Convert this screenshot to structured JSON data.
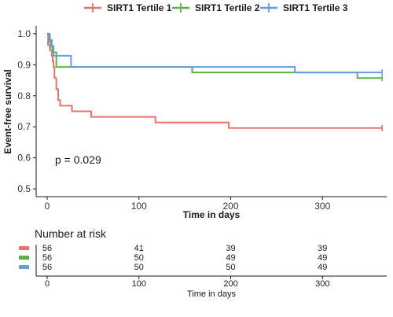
{
  "chart_data": {
    "type": "line",
    "subtype": "kaplan-meier step",
    "legend_position": "top",
    "xlabel": "Time in days",
    "ylabel": "Event-free survival",
    "xlim": [
      -12,
      370
    ],
    "ylim": [
      0.475,
      1.025
    ],
    "x_ticks": [
      0,
      100,
      200,
      300
    ],
    "y_ticks": [
      0.5,
      0.6,
      0.7,
      0.8,
      0.9,
      1.0
    ],
    "y_tick_labels": [
      "0.5",
      "0.6",
      "0.7",
      "0.8",
      "0.9",
      "1.0"
    ],
    "annotation": "p = 0.029",
    "grid": false,
    "series": [
      {
        "name": "SIRT1 Tertile 1",
        "color": "#E8736C",
        "x": [
          0,
          1,
          3,
          5,
          6,
          7,
          8,
          10,
          12,
          14,
          18,
          27,
          48,
          118,
          198,
          365
        ],
        "y": [
          1.0,
          0.964,
          0.946,
          0.929,
          0.911,
          0.893,
          0.857,
          0.821,
          0.786,
          0.768,
          0.768,
          0.75,
          0.732,
          0.714,
          0.696,
          0.696
        ],
        "censor_x": [
          365
        ],
        "censor_y": [
          0.696
        ]
      },
      {
        "name": "SIRT1 Tertile 2",
        "color": "#59B348",
        "x": [
          0,
          2,
          4,
          6,
          10,
          158,
          338,
          365
        ],
        "y": [
          1.0,
          0.98,
          0.96,
          0.94,
          0.893,
          0.875,
          0.857,
          0.857
        ],
        "censor_x": [
          2,
          4,
          365
        ],
        "censor_y": [
          0.98,
          0.96,
          0.857
        ]
      },
      {
        "name": "SIRT1 Tertile 3",
        "color": "#6A9BDE",
        "x": [
          0,
          3,
          5,
          7,
          26,
          270,
          365
        ],
        "y": [
          1.0,
          0.98,
          0.96,
          0.929,
          0.893,
          0.875,
          0.875
        ],
        "censor_x": [
          3,
          365
        ],
        "censor_y": [
          0.98,
          0.875
        ]
      }
    ]
  },
  "risk_table": {
    "title": "Number at risk",
    "xlabel": "Time in days",
    "x_ticks": [
      0,
      100,
      200,
      300
    ],
    "tick_labels": [
      "0",
      "100",
      "200",
      "300"
    ],
    "rows": [
      {
        "color": "#E8736C",
        "values": [
          "56",
          "41",
          "39",
          "39"
        ]
      },
      {
        "color": "#59B348",
        "values": [
          "56",
          "50",
          "49",
          "49"
        ]
      },
      {
        "color": "#6A9BDE",
        "values": [
          "56",
          "50",
          "50",
          "49"
        ]
      }
    ]
  }
}
